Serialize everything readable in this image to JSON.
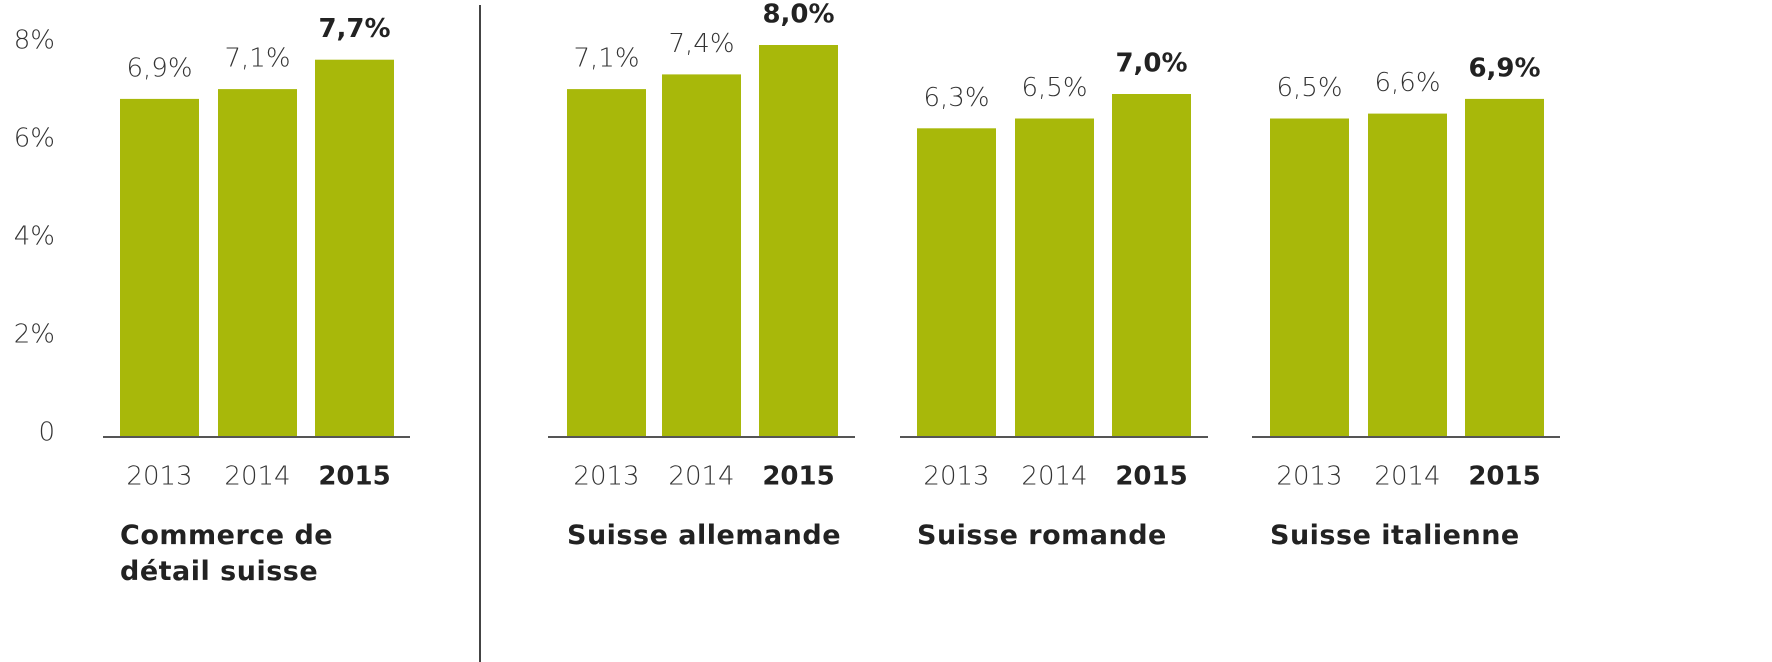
{
  "chart_data": [
    {
      "type": "bar",
      "title": "Commerce de détail suisse",
      "categories": [
        "2013",
        "2014",
        "2015"
      ],
      "values": [
        6.9,
        7.1,
        7.7
      ],
      "value_labels": [
        "6,9%",
        "7,1%",
        "7,7%"
      ],
      "color": "#a8b80a",
      "ylim": [
        0,
        8
      ],
      "yticks": [
        0,
        {
          "value": 2,
          "label": "2%"
        },
        {
          "value": 4,
          "label": "4%"
        },
        {
          "value": 6,
          "label": "6%"
        },
        {
          "value": 8,
          "label": "8%"
        }
      ]
    },
    {
      "type": "bar",
      "title": "Suisse allemande",
      "categories": [
        "2013",
        "2014",
        "2015"
      ],
      "values": [
        7.1,
        7.4,
        8.0
      ],
      "value_labels": [
        "7,1%",
        "7,4%",
        "8,0%"
      ],
      "color": "#a8b80a",
      "ylim": [
        0,
        8
      ]
    },
    {
      "type": "bar",
      "title": "Suisse romande",
      "categories": [
        "2013",
        "2014",
        "2015"
      ],
      "values": [
        6.3,
        6.5,
        7.0
      ],
      "value_labels": [
        "6,3%",
        "6,5%",
        "7,0%"
      ],
      "color": "#a8b80a",
      "ylim": [
        0,
        8
      ]
    },
    {
      "type": "bar",
      "title": "Suisse italienne",
      "categories": [
        "2013",
        "2014",
        "2015"
      ],
      "values": [
        6.5,
        6.6,
        6.9
      ],
      "value_labels": [
        "6,5%",
        "6,6%",
        "6,9%"
      ],
      "color": "#a8b80a",
      "ylim": [
        0,
        8
      ]
    }
  ]
}
